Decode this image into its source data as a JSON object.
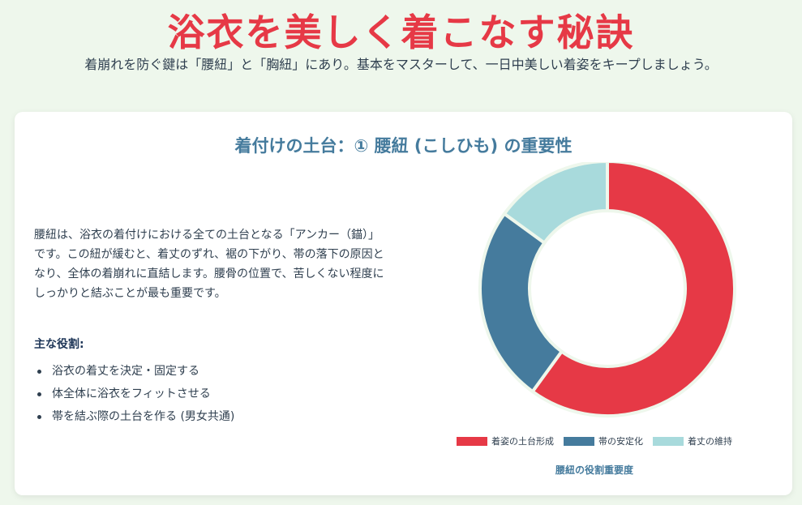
{
  "header": {
    "title": "浴衣を美しく着こなす秘訣",
    "subtitle": "着崩れを防ぐ鍵は「腰紐」と「胸紐」にあり。基本をマスターして、一日中美しい着姿をキープしましょう。"
  },
  "section": {
    "title": "着付けの土台：① 腰紐 (こしひも) の重要性",
    "description": "腰紐は、浴衣の着付けにおける全ての土台となる「アンカー（錨）」です。この紐が緩むと、着丈のずれ、裾の下がり、帯の落下の原因となり、全体の着崩れに直結します。腰骨の位置で、苦しくない程度にしっかりと結ぶことが最も重要です。",
    "roles_heading": "主な役割:",
    "roles": [
      "浴衣の着丈を決定・固定する",
      "体全体に浴衣をフィットさせる",
      "帯を結ぶ際の土台を作る (男女共通)"
    ]
  },
  "colors": {
    "accent": "#e63946",
    "secondary": "#457b9d",
    "light": "#a8dadc",
    "background": "#eef7ec"
  },
  "chart_data": {
    "type": "pie",
    "categories": [
      "着姿の土台形成",
      "帯の安定化",
      "着丈の維持"
    ],
    "values": [
      60,
      25,
      15
    ],
    "colors": [
      "#e63946",
      "#457b9d",
      "#a8dadc"
    ],
    "title": "腰紐の役割重要度",
    "legend": "bottom"
  }
}
